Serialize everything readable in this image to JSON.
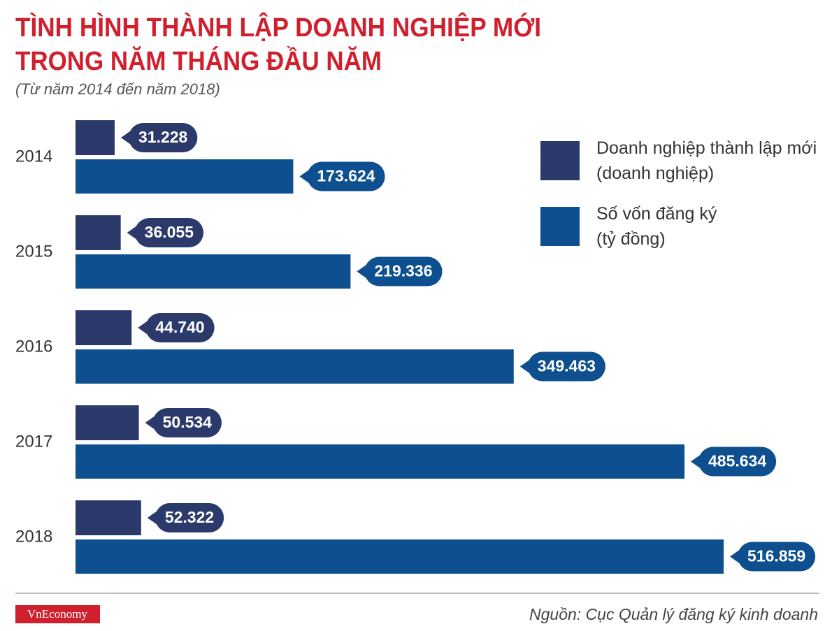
{
  "chart_data": {
    "type": "bar",
    "title": [
      "TÌNH HÌNH THÀNH LẬP DOANH NGHIỆP MỚI",
      "TRONG NĂM THÁNG ĐẦU NĂM"
    ],
    "subtitle": "(Từ năm 2014 đến năm 2018)",
    "categories": [
      "2014",
      "2015",
      "2016",
      "2017",
      "2018"
    ],
    "series": [
      {
        "name": "Doanh nghiệp thành lập mới\n(doanh nghiệp)",
        "color": "#2b3a6b",
        "values": [
          31228,
          36055,
          44740,
          50534,
          52322
        ],
        "value_labels": [
          "31.228",
          "36.055",
          "44.740",
          "50.534",
          "52.322"
        ]
      },
      {
        "name": "Số vốn đăng ký\n(tỷ đồng)",
        "color": "#0d4f8f",
        "values": [
          173624,
          219336,
          349463,
          485634,
          516859
        ],
        "value_labels": [
          "173.624",
          "219.336",
          "349.463",
          "485.634",
          "516.859"
        ]
      }
    ],
    "brand": "VnEconomy",
    "source": "Nguồn: Cục Quản lý đăng ký kinh doanh"
  }
}
